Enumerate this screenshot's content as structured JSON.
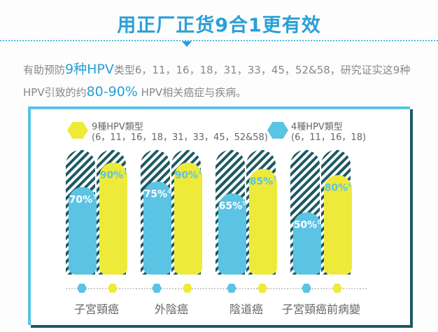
{
  "header": {
    "title": "用正厂正货9合1更有效"
  },
  "intro": {
    "p1": "有助预防",
    "h1": "9种HPV",
    "p2": "类型6，11，16，18，31，33，45，52&58，研究证实这9种HPV引致的约",
    "h2": "80-90%",
    "p3": " HPV相关癌症与疾病。"
  },
  "colors": {
    "nine": "#eeea3a",
    "four": "#5bc3e3",
    "hatch": "#1d5a63",
    "accent": "#2a9fd8"
  },
  "chart_data": {
    "type": "bar",
    "categories": [
      "子宮頸癌",
      "外陰癌",
      "陰道癌",
      "子宮頸癌前病變"
    ],
    "series": [
      {
        "name": "4種HPV類型",
        "types": "(6，11，16，18)",
        "values": [
          70,
          75,
          65,
          50
        ],
        "labels": [
          "70%",
          "75%",
          "65%",
          "50%"
        ],
        "refs": [
          "3",
          "4",
          "5",
          "6"
        ]
      },
      {
        "name": "9種HPV類型",
        "types": "(6，11，16，18，31，33，45，52&58)",
        "values": [
          90,
          90,
          85,
          80
        ],
        "labels": [
          "90%",
          "90%",
          "85%",
          "80%"
        ],
        "refs": [
          "3",
          "4",
          "5",
          "6"
        ]
      }
    ],
    "ylim": [
      0,
      100
    ],
    "legend": "top"
  }
}
